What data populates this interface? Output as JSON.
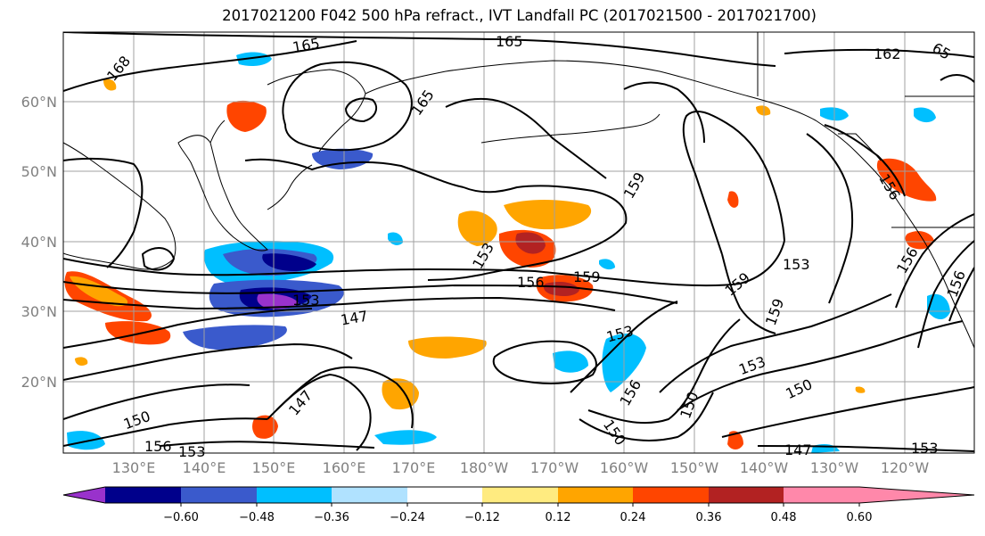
{
  "title": "2017021200 F042 500 hPa refract., IVT Landfall PC (2017021500 - 2017021700)",
  "lat_labels": [
    "60°N",
    "50°N",
    "40°N",
    "30°N",
    "20°N"
  ],
  "lon_labels": [
    "130°E",
    "140°E",
    "150°E",
    "160°E",
    "170°E",
    "180°W",
    "170°W",
    "160°W",
    "150°W",
    "140°W",
    "130°W",
    "120°W"
  ],
  "colorbar": {
    "colors": [
      "#9932cc",
      "#00008b",
      "#3a5acc",
      "#00bfff",
      "#b0e2ff",
      "#ffffff",
      "#ffeb80",
      "#ffa500",
      "#ff4500",
      "#b22222",
      "#ff88aa"
    ],
    "tick_labels": [
      "−0.60",
      "−0.48",
      "−0.36",
      "−0.24",
      "−0.12",
      "0.12",
      "0.24",
      "0.36",
      "0.48",
      "0.60"
    ]
  },
  "contour_labels": [
    "168",
    "165",
    "165",
    "165",
    "162",
    "65",
    "159",
    "159",
    "159",
    "159",
    "156",
    "156",
    "156",
    "156",
    "156",
    "153",
    "153",
    "153",
    "153",
    "153",
    "153",
    "150",
    "150",
    "150",
    "150",
    "147",
    "147",
    "147",
    "153",
    "156",
    "150"
  ]
}
